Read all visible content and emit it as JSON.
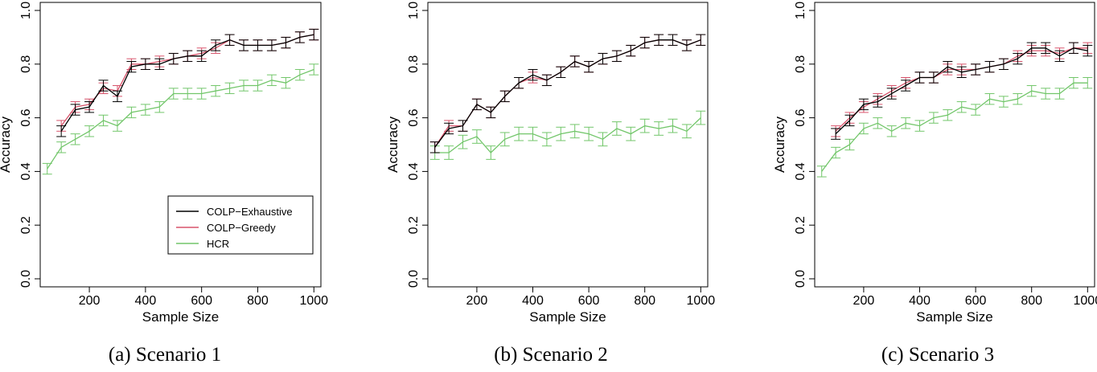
{
  "colors": {
    "COLP-Exhaustive": "#000000",
    "COLP-Greedy": "#d8536b",
    "HCR": "#72c66a"
  },
  "chart_data": [
    {
      "type": "line",
      "caption": "(a) Scenario 1",
      "xlabel": "Sample Size",
      "ylabel": "Accuracy",
      "xlim": [
        25,
        1025
      ],
      "ylim": [
        0,
        1.0
      ],
      "xticks": [
        "200",
        "400",
        "600",
        "800",
        "1000"
      ],
      "yticks": [
        "0.0",
        "0.2",
        "0.4",
        "0.6",
        "0.8",
        "1.0"
      ],
      "legend": {
        "placement": "bottom-right",
        "entries": [
          "COLP−Exhaustive",
          "COLP−Greedy",
          "HCR"
        ]
      },
      "x": [
        50,
        100,
        150,
        200,
        250,
        300,
        350,
        400,
        450,
        500,
        550,
        600,
        650,
        700,
        750,
        800,
        850,
        900,
        950,
        1000
      ],
      "series": [
        {
          "key": "COLP-Exhaustive",
          "error": 0.02,
          "values": [
            null,
            0.55,
            0.63,
            0.64,
            0.72,
            0.68,
            0.79,
            0.8,
            0.8,
            0.82,
            0.83,
            0.83,
            0.87,
            0.89,
            0.87,
            0.87,
            0.87,
            0.88,
            0.9,
            0.91
          ]
        },
        {
          "key": "COLP-Greedy",
          "error": 0.02,
          "values": [
            null,
            0.57,
            0.64,
            0.65,
            0.71,
            0.7,
            0.8,
            0.8,
            0.81,
            0.82,
            0.83,
            0.84,
            0.86,
            0.89,
            0.87,
            0.87,
            0.87,
            0.88,
            0.9,
            0.91
          ]
        },
        {
          "key": "HCR",
          "error": 0.02,
          "values": [
            0.41,
            0.49,
            0.52,
            0.55,
            0.59,
            0.57,
            0.62,
            0.63,
            0.64,
            0.69,
            0.69,
            0.69,
            0.7,
            0.71,
            0.72,
            0.72,
            0.74,
            0.73,
            0.76,
            0.78
          ]
        }
      ]
    },
    {
      "type": "line",
      "caption": "(b) Scenario 2",
      "xlabel": "Sample Size",
      "ylabel": "Accuracy",
      "xlim": [
        25,
        1025
      ],
      "ylim": [
        0,
        1.0
      ],
      "xticks": [
        "200",
        "400",
        "600",
        "800",
        "1000"
      ],
      "yticks": [
        "0.0",
        "0.2",
        "0.4",
        "0.6",
        "0.8",
        "1.0"
      ],
      "x": [
        50,
        100,
        150,
        200,
        250,
        300,
        350,
        400,
        450,
        500,
        550,
        600,
        650,
        700,
        750,
        800,
        850,
        900,
        950,
        1000
      ],
      "series": [
        {
          "key": "COLP-Exhaustive",
          "error": 0.02,
          "values": [
            0.49,
            0.56,
            0.57,
            0.65,
            0.62,
            0.68,
            0.73,
            0.76,
            0.74,
            0.77,
            0.81,
            0.79,
            0.82,
            0.83,
            0.85,
            0.88,
            0.89,
            0.89,
            0.87,
            0.89
          ]
        },
        {
          "key": "COLP-Greedy",
          "error": 0.02,
          "values": [
            0.49,
            0.57,
            0.57,
            0.65,
            0.62,
            0.68,
            0.73,
            0.75,
            0.74,
            0.77,
            0.81,
            0.79,
            0.82,
            0.83,
            0.85,
            0.88,
            0.89,
            0.89,
            0.87,
            0.89
          ]
        },
        {
          "key": "HCR",
          "error": 0.025,
          "values": [
            0.47,
            0.47,
            0.51,
            0.53,
            0.47,
            0.52,
            0.54,
            0.54,
            0.52,
            0.54,
            0.55,
            0.54,
            0.52,
            0.56,
            0.54,
            0.57,
            0.56,
            0.57,
            0.55,
            0.6
          ]
        }
      ]
    },
    {
      "type": "line",
      "caption": "(c) Scenario 3",
      "xlabel": "Sample Size",
      "ylabel": "Accuracy",
      "xlim": [
        25,
        1025
      ],
      "ylim": [
        0,
        1.0
      ],
      "xticks": [
        "200",
        "400",
        "600",
        "800",
        "1000"
      ],
      "yticks": [
        "0.0",
        "0.2",
        "0.4",
        "0.6",
        "0.8",
        "1.0"
      ],
      "x": [
        50,
        100,
        150,
        200,
        250,
        300,
        350,
        400,
        450,
        500,
        550,
        600,
        650,
        700,
        750,
        800,
        850,
        900,
        950,
        1000
      ],
      "series": [
        {
          "key": "COLP-Exhaustive",
          "error": 0.02,
          "values": [
            null,
            0.54,
            0.59,
            0.65,
            0.66,
            0.69,
            0.72,
            0.75,
            0.75,
            0.79,
            0.77,
            0.78,
            0.79,
            0.8,
            0.82,
            0.86,
            0.86,
            0.83,
            0.86,
            0.85
          ]
        },
        {
          "key": "COLP-Greedy",
          "error": 0.02,
          "values": [
            null,
            0.55,
            0.6,
            0.64,
            0.67,
            0.7,
            0.73,
            0.75,
            0.75,
            0.78,
            0.78,
            0.78,
            0.79,
            0.8,
            0.83,
            0.85,
            0.85,
            0.84,
            0.86,
            0.86
          ]
        },
        {
          "key": "HCR",
          "error": 0.02,
          "values": [
            0.4,
            0.47,
            0.5,
            0.56,
            0.58,
            0.55,
            0.58,
            0.57,
            0.6,
            0.61,
            0.64,
            0.63,
            0.67,
            0.66,
            0.67,
            0.7,
            0.69,
            0.69,
            0.73,
            0.73
          ]
        }
      ]
    }
  ]
}
